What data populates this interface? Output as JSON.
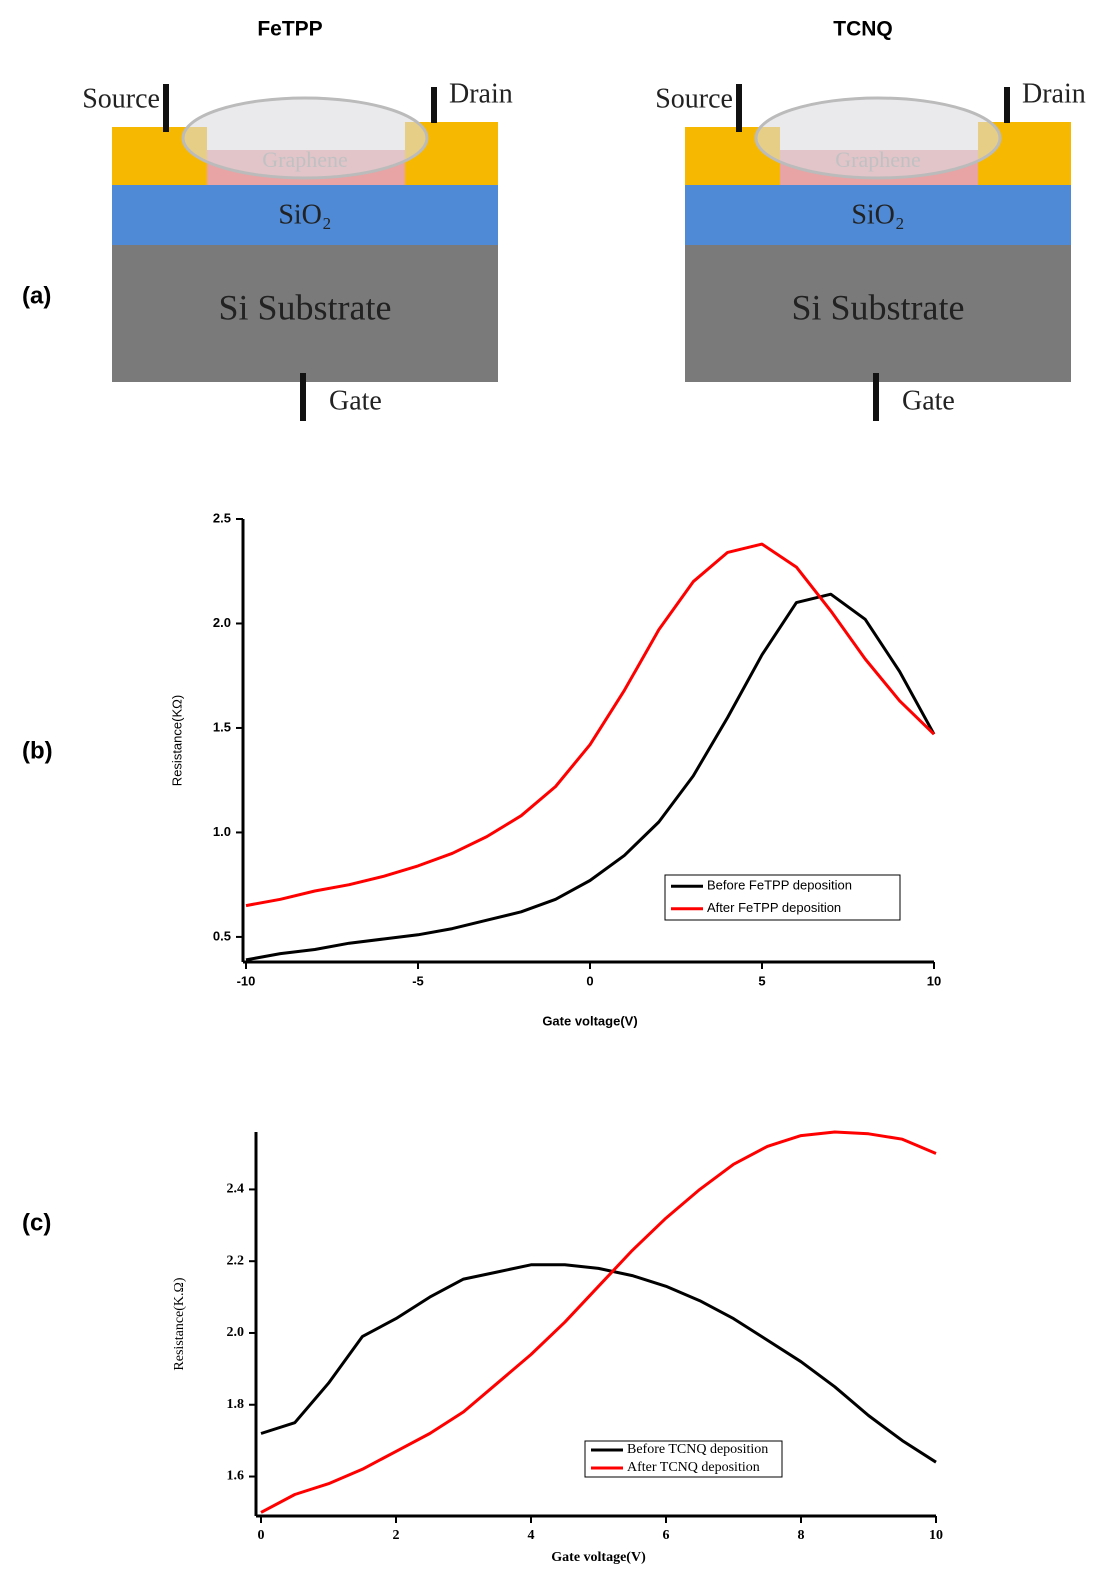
{
  "panels": [
    "(a)",
    "(b)",
    "(c)"
  ],
  "diagrams": [
    {
      "title": "FeTPP",
      "source": "Source",
      "drain": "Drain",
      "graphene": "Graphene",
      "oxide": "SiO₂",
      "substrate": "Si Substrate",
      "gate": "Gate"
    },
    {
      "title": "TCNQ",
      "source": "Source",
      "drain": "Drain",
      "graphene": "Graphene",
      "oxide": "SiO₂",
      "substrate": "Si Substrate",
      "gate": "Gate"
    }
  ],
  "chart_data": [
    {
      "type": "line",
      "x_label": "Gate voltage(V)",
      "y_label": "Resistance(KΩ)",
      "x": [
        -10,
        -9,
        -8,
        -7,
        -6,
        -5,
        -4,
        -3,
        -2,
        -1,
        0,
        1,
        2,
        3,
        4,
        5,
        6,
        7,
        8,
        9,
        10
      ],
      "series": [
        {
          "name": "Before FeTPP deposition",
          "color": "#000000",
          "values": [
            0.39,
            0.42,
            0.44,
            0.47,
            0.49,
            0.51,
            0.54,
            0.58,
            0.62,
            0.68,
            0.77,
            0.89,
            1.05,
            1.27,
            1.55,
            1.85,
            2.1,
            2.14,
            2.02,
            1.77,
            1.47
          ]
        },
        {
          "name": "After FeTPP deposition",
          "color": "#ff0000",
          "values": [
            0.65,
            0.68,
            0.72,
            0.75,
            0.79,
            0.84,
            0.9,
            0.98,
            1.08,
            1.22,
            1.42,
            1.68,
            1.97,
            2.2,
            2.34,
            2.38,
            2.27,
            2.06,
            1.83,
            1.63,
            1.47
          ]
        }
      ],
      "xlim": [
        -10,
        10
      ],
      "xticks": [
        -10,
        -5,
        0,
        5,
        10
      ],
      "ylim": [
        0.38,
        2.5
      ],
      "yticks": [
        0.5,
        {
          "value": 1,
          "label": "1.0"
        },
        1.5,
        {
          "value": 2,
          "label": "2.0"
        },
        2.5
      ]
    },
    {
      "type": "line",
      "x_label": "Gate voltage(V)",
      "y_label": "Resistance(K.Ω)",
      "x": [
        0,
        0.5,
        1,
        1.5,
        2,
        2.5,
        3,
        3.5,
        4,
        4.5,
        5,
        5.5,
        6,
        6.5,
        7,
        7.5,
        8,
        8.5,
        9,
        9.5,
        10
      ],
      "series": [
        {
          "name": "Before TCNQ deposition",
          "color": "#000000",
          "values": [
            1.72,
            1.75,
            1.86,
            1.99,
            2.04,
            2.1,
            2.15,
            2.17,
            2.19,
            2.19,
            2.18,
            2.16,
            2.13,
            2.09,
            2.04,
            1.98,
            1.92,
            1.85,
            1.77,
            1.7,
            1.64
          ]
        },
        {
          "name": "After TCNQ deposition",
          "color": "#ff0000",
          "values": [
            1.5,
            1.55,
            1.58,
            1.62,
            1.67,
            1.72,
            1.78,
            1.86,
            1.94,
            2.03,
            2.13,
            2.23,
            2.32,
            2.4,
            2.47,
            2.52,
            2.55,
            2.56,
            2.555,
            2.54,
            2.5
          ]
        }
      ],
      "xlim": [
        0,
        10
      ],
      "xticks": [
        0,
        2,
        4,
        6,
        8,
        10
      ],
      "ylim": [
        1.49,
        2.56
      ],
      "yticks": [
        1.6,
        1.8,
        {
          "value": 2,
          "label": "2.0"
        },
        2.2,
        2.4
      ]
    }
  ]
}
